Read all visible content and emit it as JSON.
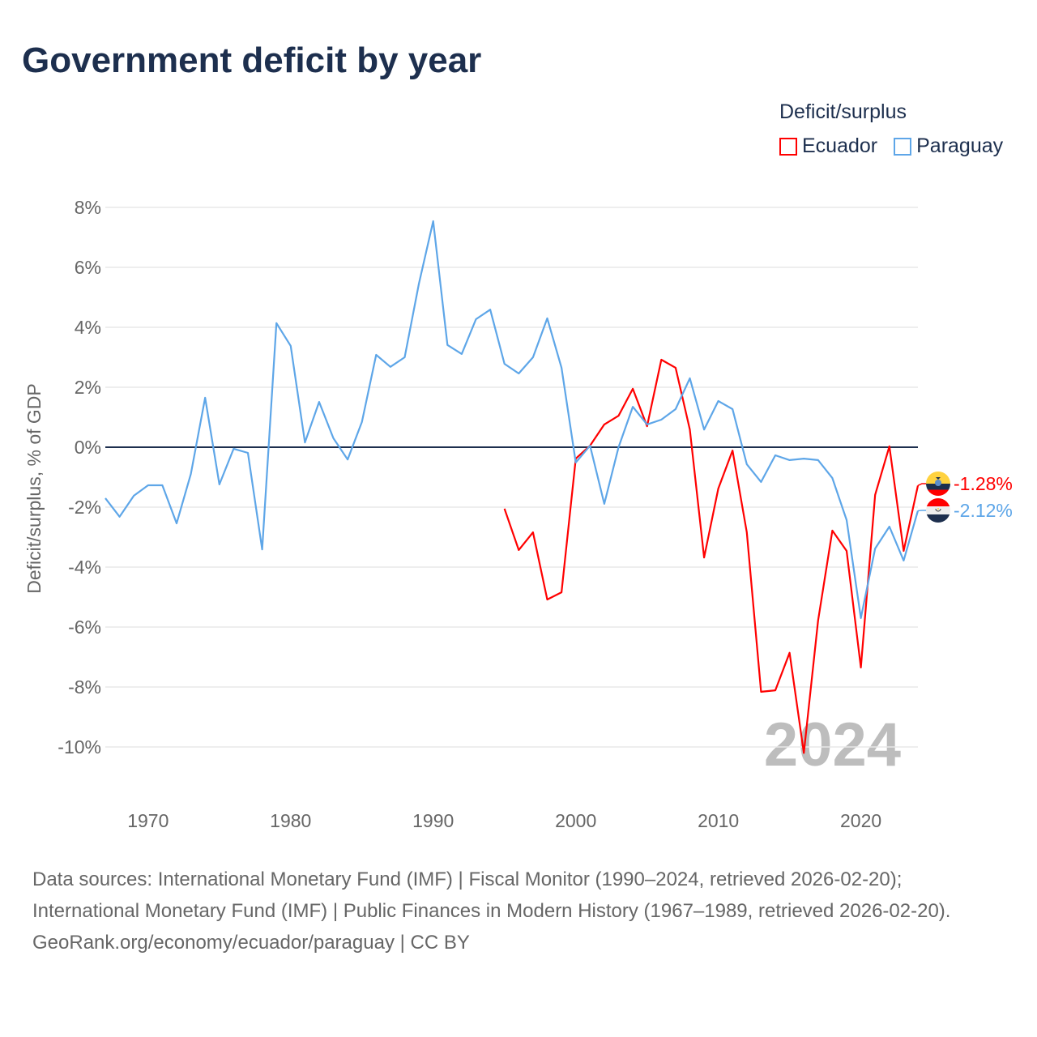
{
  "title": "Government deficit by year",
  "legend": {
    "title": "Deficit/surplus",
    "items": [
      {
        "label": "Ecuador",
        "color": "#ff0000"
      },
      {
        "label": "Paraguay",
        "color": "#5ea6e8"
      }
    ]
  },
  "footer": {
    "sources": "Data sources: International Monetary Fund (IMF) | Fiscal Monitor (1990–2024, retrieved 2026-02-20); International Monetary Fund (IMF) | Public Finances in Modern History (1967–1989, retrieved 2026-02-20).",
    "credit": "GeoRank.org/economy/ecuador/paraguay | CC BY"
  },
  "chart_data": {
    "type": "line",
    "title": "Government deficit by year",
    "ylabel": "Deficit/surplus, % of GDP",
    "xlabel": "",
    "xlim": [
      1967,
      2024
    ],
    "ylim": [
      -10,
      8
    ],
    "yticks": [
      8,
      6,
      4,
      2,
      0,
      -2,
      -4,
      -6,
      -8,
      -10
    ],
    "ytick_labels": [
      "8%",
      "6%",
      "4%",
      "2%",
      "0%",
      "-2%",
      "-4%",
      "-6%",
      "-8%",
      "-10%"
    ],
    "xticks": [
      1970,
      1980,
      1990,
      2000,
      2010,
      2020
    ],
    "xtick_labels": [
      "1970",
      "1980",
      "1990",
      "2000",
      "2010",
      "2020"
    ],
    "grid": true,
    "year_watermark": "2024",
    "series": [
      {
        "name": "Ecuador",
        "color": "#ff0000",
        "end_label": "-1.28%",
        "start_year": 1995,
        "values": [
          -2.05,
          -3.43,
          -2.84,
          -5.08,
          -4.84,
          -0.38,
          0.05,
          0.76,
          1.05,
          1.95,
          0.7,
          2.92,
          2.65,
          0.59,
          -3.68,
          -1.38,
          -0.11,
          -2.84,
          -8.16,
          -8.11,
          -6.86,
          -10.2,
          -5.78,
          -2.78,
          -3.46,
          -7.35,
          -1.59,
          0.03,
          -3.46,
          -1.28
        ]
      },
      {
        "name": "Paraguay",
        "color": "#5ea6e8",
        "end_label": "-2.12%",
        "start_year": 1967,
        "values": [
          -1.7,
          -2.32,
          -1.62,
          -1.27,
          -1.27,
          -2.54,
          -0.89,
          1.65,
          -1.24,
          -0.05,
          -0.19,
          -3.41,
          4.14,
          3.38,
          0.16,
          1.51,
          0.3,
          -0.41,
          0.84,
          3.08,
          2.68,
          3.0,
          5.46,
          7.54,
          3.41,
          3.11,
          4.27,
          4.59,
          2.78,
          2.46,
          3.0,
          4.3,
          2.65,
          -0.51,
          0.05,
          -1.89,
          0,
          1.35,
          0.76,
          0.92,
          1.27,
          2.3,
          0.59,
          1.54,
          1.27,
          -0.57,
          -1.16,
          -0.27,
          -0.43,
          -0.38,
          -0.43,
          -1.03,
          -2.43,
          -5.7,
          -3.38,
          -2.65,
          -3.78,
          -2.12
        ]
      }
    ]
  }
}
